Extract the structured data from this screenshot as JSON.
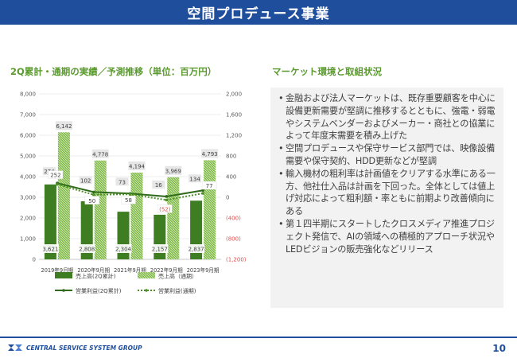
{
  "header": {
    "title": "空間プロデュース事業"
  },
  "chart_section": {
    "title": "2Q累計・通期の実績／予測推移（単位：百万円）"
  },
  "market_section": {
    "title": "マーケット環境と取組状況",
    "bullets": [
      "金融および法人マーケットは、既存重要顧客を中心に設備更新需要が堅調に推移するとともに、強電・弱電やシステムベンダーおよびメーカー・商社との協業によって年度末需要を積み上げた",
      "空間プロデュースや保守サービス部門では、映像設備需要や保守契約、HDD更新などが堅調",
      "輸入機材の粗利率は計画値をクリアする水準にある一方、他社仕入品は計画を下回った。全体としては値上げ対応によって粗利額・率ともに前期より改善傾向にある",
      "第１四半期にスタートしたクロスメディア推進プロジェクト発信で、AIの領域への積極的アプローチ状況やLEDビジョンの販売強化などリリース"
    ]
  },
  "footer": {
    "company": "CENTRAL SERVICE SYSTEM GROUP",
    "page": "10"
  },
  "colors": {
    "primary": "#1f4e9c",
    "green_dark": "#3f7d22",
    "green_light": "#8cc34a",
    "green_title": "#5a9a2e",
    "negative": "#e05050"
  },
  "chart_data": {
    "type": "bar",
    "title": "2Q累計・通期の実績／予測推移（単位：百万円）",
    "categories": [
      "2019年9月期",
      "2020年9月期",
      "2021年9月期",
      "2022年9月期",
      "2023年9月期"
    ],
    "left_axis": {
      "ylim": [
        0,
        8000
      ],
      "ticks": [
        "0",
        "1,000",
        "2,000",
        "3,000",
        "4,000",
        "5,000",
        "6,000",
        "7,000",
        "8,000"
      ]
    },
    "right_axis": {
      "ylim": [
        -1200,
        2000
      ],
      "ticks": [
        "(1,200)",
        "(800)",
        "(400)",
        "0",
        "400",
        "800",
        "1,200",
        "1,600",
        "2,000"
      ]
    },
    "series": [
      {
        "name": "売上高(2Q累計)",
        "kind": "bar",
        "axis": "left",
        "values": [
          3621,
          2808,
          2304,
          2157,
          2837
        ],
        "labels": [
          "3,621",
          "2,808",
          "2,304",
          "2,157",
          "2,837"
        ]
      },
      {
        "name": "売上高（通期）",
        "kind": "bar",
        "axis": "left",
        "values": [
          6142,
          4778,
          4194,
          3969,
          4793
        ],
        "labels": [
          "6,142",
          "4,778",
          "4,194",
          "3,969",
          "4,793"
        ]
      },
      {
        "name": "営業利益(2Q累計)",
        "kind": "line",
        "axis": "right",
        "values": [
          274,
          102,
          73,
          16,
          134
        ],
        "labels": [
          "274",
          "102",
          "73",
          "16",
          "134"
        ]
      },
      {
        "name": "営業利益(通期)",
        "kind": "line",
        "axis": "right",
        "values": [
          252,
          50,
          58,
          -52,
          77
        ],
        "labels": [
          "252",
          "50",
          "58",
          "(52)",
          "77"
        ]
      }
    ],
    "legend": [
      "売上高(2Q累計)",
      "売上高（通期）",
      "営業利益(2Q累計)",
      "営業利益(通期)"
    ],
    "legend_position": "bottom"
  }
}
